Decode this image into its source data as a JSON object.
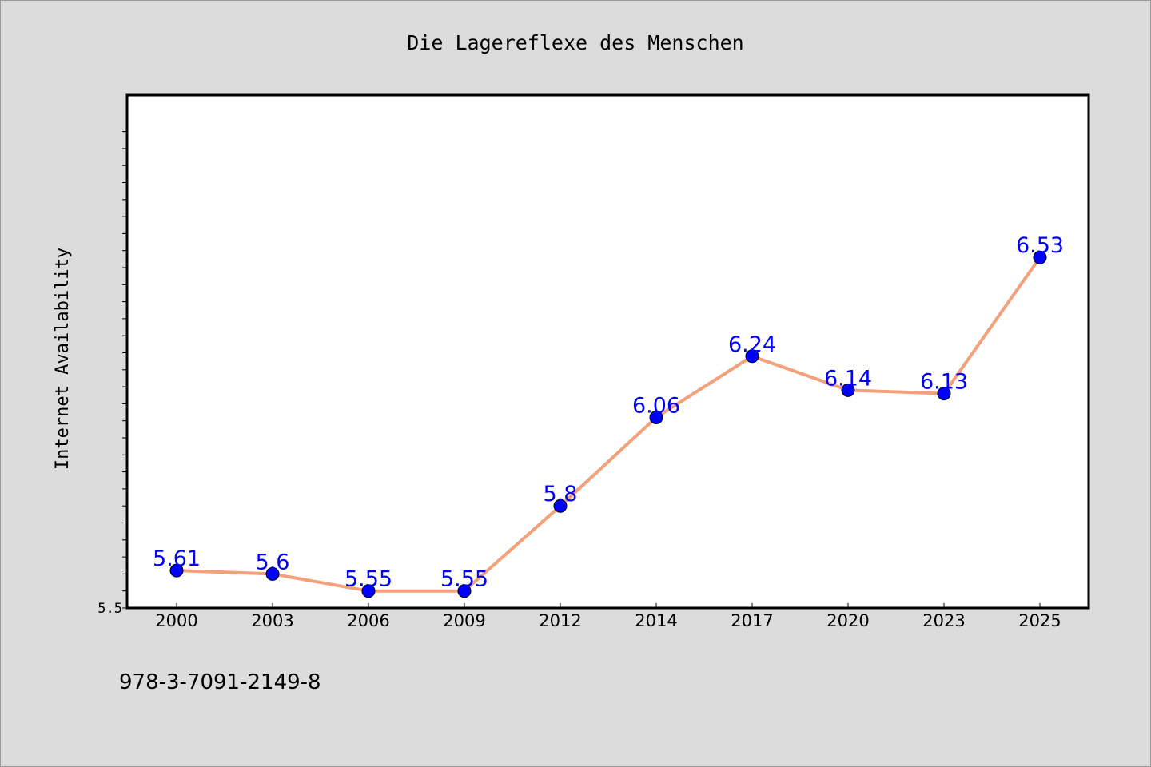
{
  "chart_data": {
    "type": "line",
    "title": "Die Lagereflexe des Menschen",
    "xlabel": "",
    "ylabel": "Internet Availability",
    "categories": [
      "2000",
      "2003",
      "2006",
      "2009",
      "2012",
      "2014",
      "2017",
      "2020",
      "2023",
      "2025"
    ],
    "series": [
      {
        "values": [
          5.61,
          5.6,
          5.55,
          5.55,
          5.8,
          6.06,
          6.24,
          6.14,
          6.13,
          6.53
        ],
        "data_labels": [
          "5.61",
          "5.6",
          "5.55",
          "5.55",
          "5.8",
          "6.06",
          "6.24",
          "6.14",
          "6.13",
          "6.53"
        ],
        "line_color": "#f4a07a",
        "marker_color": "#0000ff",
        "label_color": "#0000ff"
      }
    ],
    "y_tick_labels": [
      "5.5"
    ],
    "ylim": [
      5.5,
      7.0
    ],
    "grid": false,
    "legend": "none"
  },
  "footer_text": "978-3-7091-2149-8",
  "colors": {
    "figure_background": "#dcdcdc",
    "plot_background": "#ffffff",
    "text": "#000000"
  }
}
